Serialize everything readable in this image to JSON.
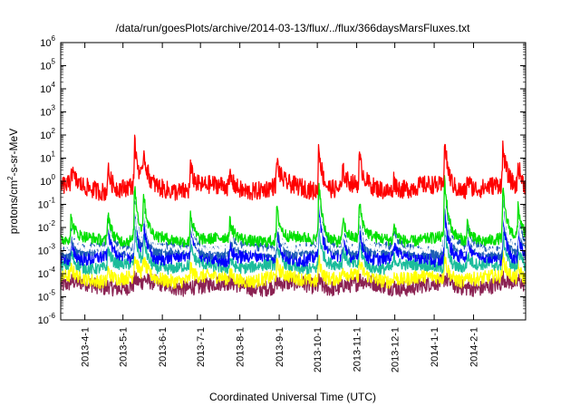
{
  "chart_data": {
    "type": "line",
    "title": "/data/run/goesPlots/archive/2014-03-13/flux/../flux/366daysMarsFluxes.txt",
    "xlabel": "Coordinated Universal Time (UTC)",
    "ylabel_parts": {
      "base": "protons/cm",
      "sup": "2",
      "rest": "-s-sr-MeV"
    },
    "y_scale": "log",
    "ylim": [
      1e-06,
      1000000.0
    ],
    "y_ticks": [
      {
        "exp": "-6"
      },
      {
        "exp": "-5"
      },
      {
        "exp": "-4"
      },
      {
        "exp": "-3"
      },
      {
        "exp": "-2"
      },
      {
        "exp": "-1"
      },
      {
        "exp": "0"
      },
      {
        "exp": "1"
      },
      {
        "exp": "2"
      },
      {
        "exp": "3"
      },
      {
        "exp": "4"
      },
      {
        "exp": "5"
      },
      {
        "exp": "6"
      }
    ],
    "x_range_days": [
      0,
      366
    ],
    "x_ticks": [
      {
        "label": "2013-4-1",
        "day": 19
      },
      {
        "label": "2013-5-1",
        "day": 49
      },
      {
        "label": "2013-6-1",
        "day": 80
      },
      {
        "label": "2013-7-1",
        "day": 110
      },
      {
        "label": "2013-8-1",
        "day": 141
      },
      {
        "label": "2013-9-1",
        "day": 172
      },
      {
        "label": "2013-10-1",
        "day": 202
      },
      {
        "label": "2013-11-1",
        "day": 233
      },
      {
        "label": "2013-12-1",
        "day": 263
      },
      {
        "label": "2014-1-1",
        "day": 294
      },
      {
        "label": "2014-2-1",
        "day": 325
      }
    ],
    "events": [
      {
        "day": 8,
        "amp": 1.0
      },
      {
        "day": 37,
        "amp": 1.5
      },
      {
        "day": 58,
        "amp": 2.8
      },
      {
        "day": 65,
        "amp": 2.0
      },
      {
        "day": 102,
        "amp": 1.5
      },
      {
        "day": 133,
        "amp": 0.8
      },
      {
        "day": 170,
        "amp": 1.6
      },
      {
        "day": 203,
        "amp": 3.0
      },
      {
        "day": 222,
        "amp": 1.1
      },
      {
        "day": 235,
        "amp": 1.8
      },
      {
        "day": 262,
        "amp": 0.8
      },
      {
        "day": 302,
        "amp": 3.0
      },
      {
        "day": 320,
        "amp": 0.9
      },
      {
        "day": 348,
        "amp": 2.4
      },
      {
        "day": 360,
        "amp": 1.5
      }
    ],
    "series": [
      {
        "color": "#8b2252",
        "base": 3e-05,
        "noise": 0.35,
        "resp": 0.1
      },
      {
        "color": "#ffff00",
        "base": 6e-05,
        "noise": 0.3,
        "resp": 0.35
      },
      {
        "color": "#1bbc9b",
        "base": 0.0002,
        "noise": 0.25,
        "resp": 0.6
      },
      {
        "color": "#0000ff",
        "base": 0.0005,
        "noise": 0.3,
        "resp": 0.8
      },
      {
        "color": "#1e5fb4",
        "base": 0.001,
        "noise": 0.3,
        "resp": 0.85
      },
      {
        "color": "#ffffff",
        "base": 0.0011,
        "noise": 0.15,
        "resp": 0.8
      },
      {
        "color": "#00e000",
        "base": 0.003,
        "noise": 0.25,
        "resp": 0.9
      },
      {
        "color": "#ff0000",
        "base": 0.5,
        "noise": 0.4,
        "resp": 0.7
      }
    ]
  }
}
